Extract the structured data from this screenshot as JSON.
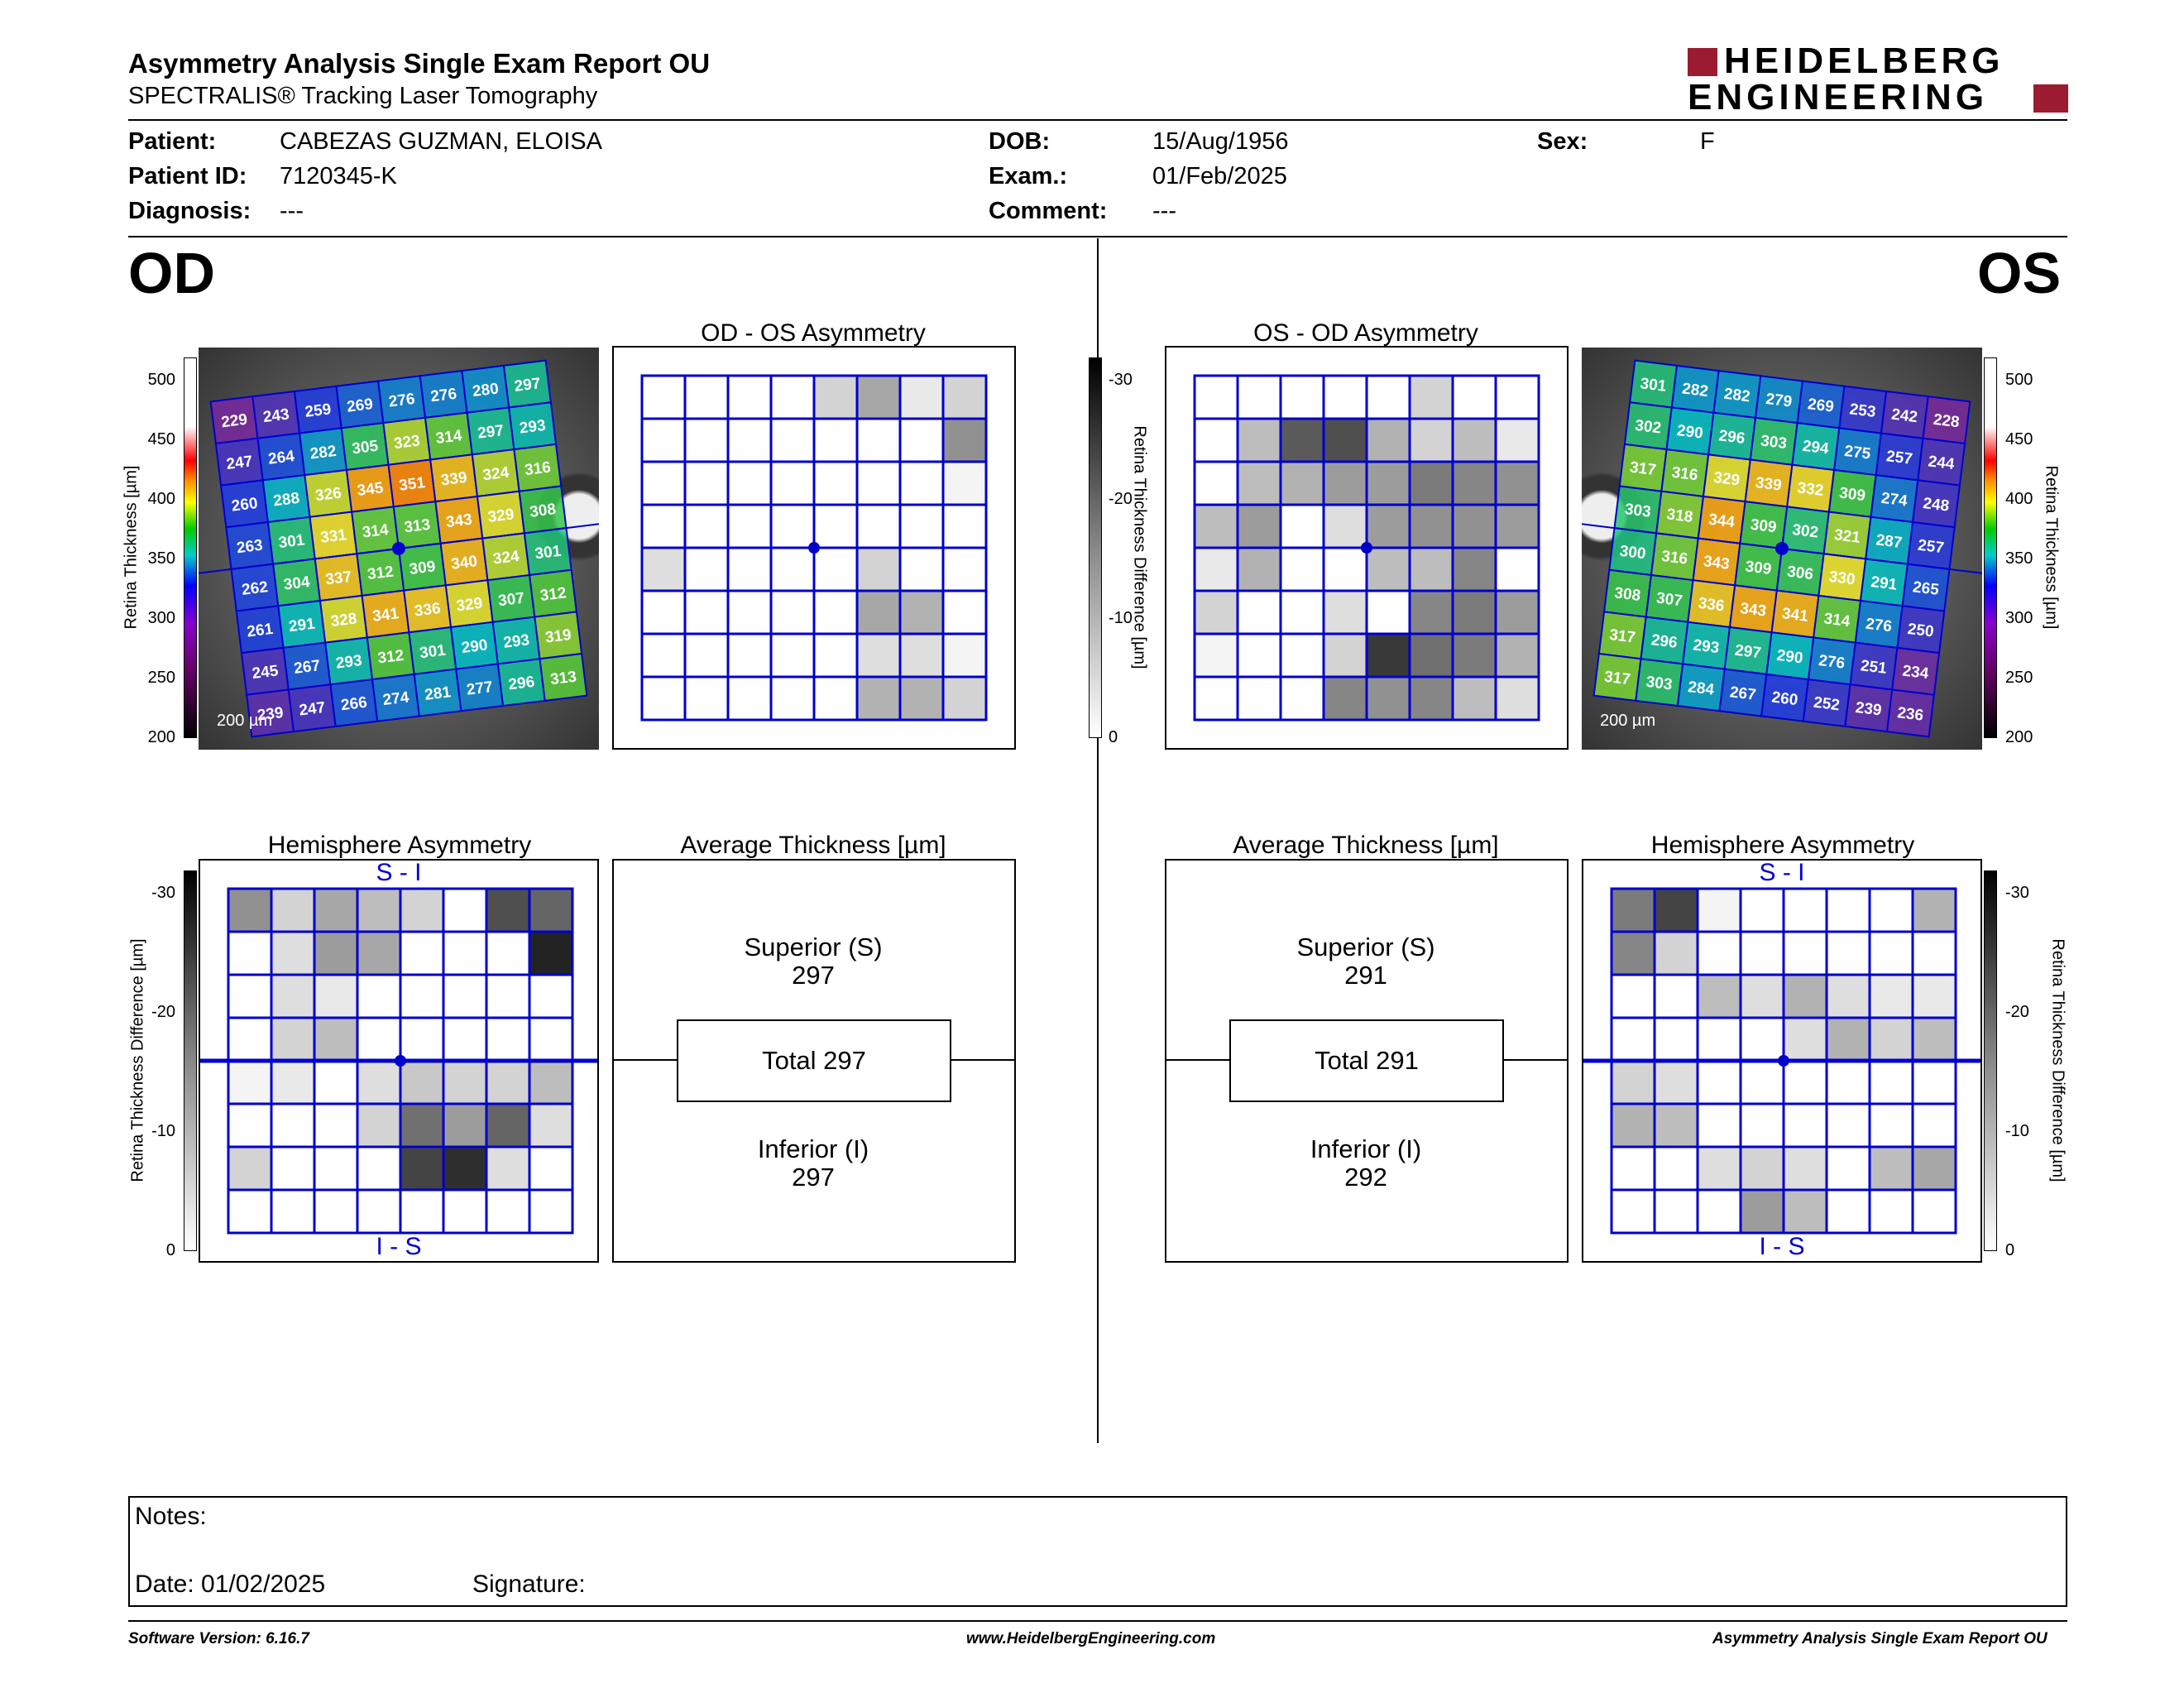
{
  "header": {
    "title": "Asymmetry Analysis Single Exam Report OU",
    "subtitle": "SPECTRALIS® Tracking Laser Tomography",
    "logo_line1": "HEIDELBERG",
    "logo_line2": "ENGINEERING"
  },
  "patient": {
    "patient_label": "Patient:",
    "patient_value": "CABEZAS GUZMAN, ELOISA",
    "id_label": "Patient ID:",
    "id_value": "7120345-K",
    "diagnosis_label": "Diagnosis:",
    "diagnosis_value": "---",
    "dob_label": "DOB:",
    "dob_value": "15/Aug/1956",
    "exam_label": "Exam.:",
    "exam_value": "01/Feb/2025",
    "comment_label": "Comment:",
    "comment_value": "---",
    "sex_label": "Sex:",
    "sex_value": "F"
  },
  "od": {
    "eye_label": "OD",
    "asym_title": "OD - OS Asymmetry",
    "hemi_title": "Hemisphere Asymmetry",
    "hemi_top": "S - I",
    "hemi_bottom": "I - S",
    "avg_title": "Average Thickness [µm]",
    "superior_label": "Superior (S)",
    "superior_value": "297",
    "total_label": "Total 297",
    "inferior_label": "Inferior (I)",
    "inferior_value": "297",
    "scale_bar": "200 µm",
    "thickness": [
      [
        229,
        243,
        259,
        269,
        276,
        276,
        280,
        297
      ],
      [
        247,
        264,
        282,
        305,
        323,
        314,
        297,
        293
      ],
      [
        260,
        288,
        326,
        345,
        351,
        339,
        324,
        316
      ],
      [
        263,
        301,
        331,
        314,
        313,
        343,
        329,
        308
      ],
      [
        262,
        304,
        337,
        312,
        309,
        340,
        324,
        301
      ],
      [
        261,
        291,
        328,
        341,
        336,
        329,
        307,
        312
      ],
      [
        245,
        267,
        293,
        312,
        301,
        290,
        293,
        319
      ],
      [
        239,
        247,
        266,
        274,
        281,
        277,
        296,
        313
      ]
    ],
    "asym_grid": [
      [
        0,
        0,
        0,
        0,
        0.2,
        0.4,
        0.1,
        0.2
      ],
      [
        0,
        0,
        0,
        0,
        0,
        0,
        0,
        0.5
      ],
      [
        0,
        0,
        0,
        0,
        0,
        0,
        0,
        0.05
      ],
      [
        0,
        0,
        0,
        0,
        0,
        0,
        0,
        0
      ],
      [
        0.15,
        0,
        0,
        0,
        0,
        0.2,
        0,
        0
      ],
      [
        0,
        0,
        0,
        0,
        0,
        0.4,
        0.35,
        0
      ],
      [
        0,
        0,
        0,
        0,
        0,
        0.15,
        0.15,
        0.05
      ],
      [
        0,
        0,
        0,
        0,
        0,
        0.35,
        0.35,
        0.2
      ]
    ],
    "hemi_grid": [
      [
        0.5,
        0.2,
        0.4,
        0.3,
        0.2,
        0,
        0.8,
        0.7
      ],
      [
        0,
        0.15,
        0.45,
        0.4,
        0,
        0,
        0,
        1.0
      ],
      [
        0,
        0.15,
        0.1,
        0,
        0,
        0,
        0,
        0
      ],
      [
        0,
        0.2,
        0.3,
        0,
        0,
        0,
        0,
        0
      ],
      [
        0.05,
        0.1,
        0,
        0.15,
        0.25,
        0.2,
        0.2,
        0.3
      ],
      [
        0,
        0,
        0,
        0.2,
        0.65,
        0.45,
        0.7,
        0.15
      ],
      [
        0.2,
        0,
        0,
        0,
        0.85,
        0.95,
        0.15,
        0
      ],
      [
        0,
        0,
        0,
        0,
        0,
        0,
        0,
        0
      ]
    ]
  },
  "os": {
    "eye_label": "OS",
    "asym_title": "OS - OD Asymmetry",
    "hemi_title": "Hemisphere Asymmetry",
    "hemi_top": "S - I",
    "hemi_bottom": "I - S",
    "avg_title": "Average Thickness [µm]",
    "superior_label": "Superior (S)",
    "superior_value": "291",
    "total_label": "Total 291",
    "inferior_label": "Inferior (I)",
    "inferior_value": "292",
    "scale_bar": "200 µm",
    "thickness": [
      [
        301,
        282,
        282,
        279,
        269,
        253,
        242,
        228
      ],
      [
        302,
        290,
        296,
        303,
        294,
        275,
        257,
        244
      ],
      [
        317,
        316,
        329,
        339,
        332,
        309,
        274,
        248
      ],
      [
        303,
        318,
        344,
        309,
        302,
        321,
        287,
        257
      ],
      [
        300,
        316,
        343,
        309,
        306,
        330,
        291,
        265
      ],
      [
        308,
        307,
        336,
        343,
        341,
        314,
        276,
        250
      ],
      [
        317,
        296,
        293,
        297,
        290,
        276,
        251,
        234
      ],
      [
        317,
        303,
        284,
        267,
        260,
        252,
        239,
        236
      ]
    ],
    "asym_grid": [
      [
        0,
        0,
        0,
        0,
        0,
        0.2,
        0,
        0
      ],
      [
        0,
        0.3,
        0.75,
        0.8,
        0.35,
        0.2,
        0.3,
        0.1
      ],
      [
        0,
        0.3,
        0.35,
        0.45,
        0.45,
        0.6,
        0.55,
        0.5
      ],
      [
        0.3,
        0.45,
        0,
        0.15,
        0.45,
        0.5,
        0.5,
        0.45
      ],
      [
        0.1,
        0.35,
        0,
        0,
        0.3,
        0.3,
        0.55,
        0
      ],
      [
        0.2,
        0,
        0,
        0.15,
        0,
        0.55,
        0.6,
        0.45
      ],
      [
        0.05,
        0,
        0,
        0.2,
        0.9,
        0.65,
        0.6,
        0.35
      ],
      [
        0,
        0,
        0,
        0.55,
        0.5,
        0.55,
        0.3,
        0.15
      ]
    ],
    "hemi_grid": [
      [
        0.6,
        0.85,
        0.05,
        0,
        0,
        0,
        0,
        0.35
      ],
      [
        0.55,
        0.2,
        0,
        0,
        0,
        0,
        0,
        0
      ],
      [
        0,
        0,
        0.3,
        0.15,
        0.35,
        0.15,
        0.1,
        0.1
      ],
      [
        0,
        0,
        0,
        0,
        0.15,
        0.35,
        0.2,
        0.3
      ],
      [
        0.2,
        0.15,
        0,
        0,
        0,
        0,
        0,
        0
      ],
      [
        0.35,
        0.3,
        0,
        0,
        0,
        0,
        0,
        0
      ],
      [
        0,
        0,
        0.15,
        0.2,
        0.15,
        0,
        0.3,
        0.4
      ],
      [
        0,
        0,
        0,
        0.45,
        0.3,
        0,
        0,
        0
      ]
    ]
  },
  "scales": {
    "thickness_label": "Retina Thickness [µm]",
    "thickness_ticks": [
      "500",
      "450",
      "400",
      "350",
      "300",
      "250",
      "200"
    ],
    "diff_label": "Retina Thickness Difference [µm]",
    "diff_ticks": [
      "-30",
      "-20",
      "-10",
      "0"
    ]
  },
  "notes": {
    "notes_label": "Notes:",
    "date_label": "Date: 01/02/2025",
    "signature_label": "Signature:"
  },
  "footer": {
    "software": "Software Version: 6.16.7",
    "website": "www.HeidelbergEngineering.com",
    "report": "Asymmetry Analysis Single Exam Report OU"
  },
  "colors": {
    "grid_blue": "#0000cc",
    "logo_red": "#9b1b30"
  }
}
